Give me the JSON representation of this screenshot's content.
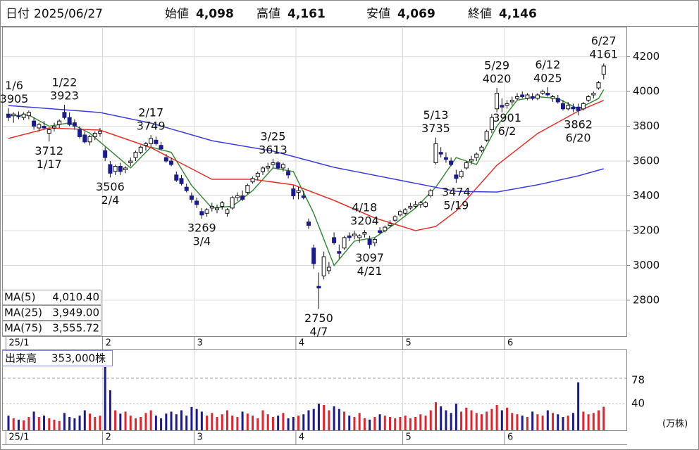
{
  "header": {
    "date_label": "日付",
    "date": "2025/06/27",
    "fields": [
      {
        "label": "始値",
        "value": "4,098",
        "color": "#111111"
      },
      {
        "label": "高値",
        "value": "4,161",
        "color": "#e8212b"
      },
      {
        "label": "安値",
        "value": "4,069",
        "color": "#1a7a1a"
      },
      {
        "label": "終値",
        "value": "4,146",
        "color": "#111111"
      }
    ]
  },
  "chart_data": {
    "type": "candlestick",
    "up_color": "#ffffff",
    "down_color": "#1b1b8f",
    "edge_color": "#111111",
    "ylim": [
      2594,
      4372
    ],
    "yticks": [
      2800,
      3000,
      3200,
      3400,
      3600,
      3800,
      4000,
      4200
    ],
    "grid": true,
    "dates": [
      "1/6",
      "1/7",
      "1/8",
      "1/9",
      "1/10",
      "1/14",
      "1/15",
      "1/16",
      "1/17",
      "1/20",
      "1/21",
      "1/22",
      "1/23",
      "1/24",
      "1/27",
      "1/28",
      "1/29",
      "1/30",
      "1/31",
      "2/3",
      "2/4",
      "2/5",
      "2/6",
      "2/7",
      "2/10",
      "2/12",
      "2/13",
      "2/14",
      "2/17",
      "2/18",
      "2/19",
      "2/20",
      "2/21",
      "2/25",
      "2/26",
      "2/27",
      "2/28",
      "3/3",
      "3/4",
      "3/5",
      "3/6",
      "3/7",
      "3/10",
      "3/11",
      "3/12",
      "3/13",
      "3/14",
      "3/17",
      "3/18",
      "3/19",
      "3/21",
      "3/24",
      "3/25",
      "3/26",
      "3/27",
      "3/28",
      "3/31",
      "4/1",
      "4/2",
      "4/3",
      "4/4",
      "4/7",
      "4/8",
      "4/9",
      "4/10",
      "4/11",
      "4/14",
      "4/15",
      "4/16",
      "4/17",
      "4/18",
      "4/21",
      "4/22",
      "4/23",
      "4/24",
      "4/25",
      "4/28",
      "4/30",
      "5/1",
      "5/2",
      "5/7",
      "5/8",
      "5/9",
      "5/12",
      "5/13",
      "5/14",
      "5/15",
      "5/16",
      "5/19",
      "5/20",
      "5/21",
      "5/22",
      "5/23",
      "5/26",
      "5/27",
      "5/28",
      "5/29",
      "5/30",
      "6/2",
      "6/3",
      "6/4",
      "6/5",
      "6/6",
      "6/9",
      "6/10",
      "6/11",
      "6/12",
      "6/13",
      "6/16",
      "6/17",
      "6/18",
      "6/19",
      "6/20",
      "6/23",
      "6/24",
      "6/25",
      "6/26",
      "6/27"
    ],
    "candles": [
      [
        3870,
        3905,
        3830,
        3850
      ],
      [
        3860,
        3880,
        3820,
        3870
      ],
      [
        3860,
        3885,
        3840,
        3855
      ],
      [
        3850,
        3880,
        3835,
        3870
      ],
      [
        3860,
        3890,
        3840,
        3880
      ],
      [
        3830,
        3850,
        3780,
        3800
      ],
      [
        3790,
        3820,
        3770,
        3810
      ],
      [
        3800,
        3830,
        3780,
        3790
      ],
      [
        3760,
        3790,
        3712,
        3780
      ],
      [
        3790,
        3820,
        3770,
        3800
      ],
      [
        3810,
        3840,
        3790,
        3830
      ],
      [
        3880,
        3923,
        3840,
        3850
      ],
      [
        3850,
        3880,
        3800,
        3810
      ],
      [
        3820,
        3840,
        3780,
        3800
      ],
      [
        3780,
        3800,
        3730,
        3740
      ],
      [
        3750,
        3770,
        3700,
        3710
      ],
      [
        3710,
        3750,
        3690,
        3740
      ],
      [
        3740,
        3770,
        3720,
        3760
      ],
      [
        3760,
        3790,
        3740,
        3770
      ],
      [
        3660,
        3680,
        3600,
        3620
      ],
      [
        3580,
        3600,
        3506,
        3530
      ],
      [
        3540,
        3580,
        3520,
        3570
      ],
      [
        3570,
        3590,
        3520,
        3540
      ],
      [
        3550,
        3570,
        3530,
        3560
      ],
      [
        3590,
        3620,
        3570,
        3600
      ],
      [
        3620,
        3660,
        3600,
        3650
      ],
      [
        3650,
        3690,
        3640,
        3680
      ],
      [
        3690,
        3710,
        3660,
        3700
      ],
      [
        3700,
        3749,
        3680,
        3730
      ],
      [
        3720,
        3740,
        3690,
        3700
      ],
      [
        3690,
        3710,
        3660,
        3670
      ],
      [
        3620,
        3640,
        3590,
        3600
      ],
      [
        3600,
        3620,
        3570,
        3580
      ],
      [
        3520,
        3540,
        3480,
        3490
      ],
      [
        3500,
        3520,
        3460,
        3470
      ],
      [
        3450,
        3470,
        3420,
        3430
      ],
      [
        3400,
        3420,
        3360,
        3380
      ],
      [
        3370,
        3390,
        3330,
        3350
      ],
      [
        3310,
        3330,
        3269,
        3290
      ],
      [
        3300,
        3330,
        3280,
        3320
      ],
      [
        3330,
        3360,
        3310,
        3340
      ],
      [
        3320,
        3350,
        3300,
        3330
      ],
      [
        3340,
        3370,
        3320,
        3360
      ],
      [
        3300,
        3330,
        3280,
        3320
      ],
      [
        3330,
        3400,
        3320,
        3390
      ],
      [
        3390,
        3420,
        3370,
        3400
      ],
      [
        3400,
        3430,
        3370,
        3380
      ],
      [
        3420,
        3470,
        3410,
        3460
      ],
      [
        3480,
        3510,
        3470,
        3500
      ],
      [
        3510,
        3540,
        3490,
        3530
      ],
      [
        3540,
        3570,
        3520,
        3560
      ],
      [
        3560,
        3590,
        3540,
        3570
      ],
      [
        3580,
        3613,
        3560,
        3590
      ],
      [
        3590,
        3600,
        3550,
        3560
      ],
      [
        3560,
        3590,
        3540,
        3580
      ],
      [
        3540,
        3560,
        3500,
        3520
      ],
      [
        3440,
        3460,
        3380,
        3400
      ],
      [
        3420,
        3450,
        3380,
        3430
      ],
      [
        3400,
        3430,
        3380,
        3390
      ],
      [
        3250,
        3270,
        3210,
        3230
      ],
      [
        3100,
        3120,
        2980,
        3010
      ],
      [
        2880,
        2960,
        2750,
        2870
      ],
      [
        2940,
        3080,
        2920,
        3050
      ],
      [
        2970,
        3020,
        2950,
        2990
      ],
      [
        3160,
        3190,
        3120,
        3130
      ],
      [
        3080,
        3120,
        3040,
        3070
      ],
      [
        3100,
        3170,
        3090,
        3160
      ],
      [
        3170,
        3190,
        3140,
        3160
      ],
      [
        3170,
        3200,
        3150,
        3180
      ],
      [
        3160,
        3180,
        3130,
        3170
      ],
      [
        3180,
        3204,
        3160,
        3190
      ],
      [
        3150,
        3170,
        3097,
        3120
      ],
      [
        3130,
        3160,
        3110,
        3150
      ],
      [
        3200,
        3220,
        3180,
        3190
      ],
      [
        3200,
        3230,
        3190,
        3220
      ],
      [
        3230,
        3260,
        3220,
        3240
      ],
      [
        3260,
        3290,
        3250,
        3280
      ],
      [
        3290,
        3320,
        3280,
        3310
      ],
      [
        3300,
        3330,
        3290,
        3320
      ],
      [
        3330,
        3360,
        3320,
        3340
      ],
      [
        3340,
        3370,
        3330,
        3350
      ],
      [
        3350,
        3370,
        3330,
        3360
      ],
      [
        3340,
        3370,
        3330,
        3360
      ],
      [
        3400,
        3440,
        3390,
        3430
      ],
      [
        3590,
        3735,
        3580,
        3700
      ],
      [
        3650,
        3680,
        3620,
        3640
      ],
      [
        3620,
        3650,
        3590,
        3610
      ],
      [
        3600,
        3620,
        3570,
        3580
      ],
      [
        3520,
        3550,
        3474,
        3500
      ],
      [
        3510,
        3550,
        3500,
        3540
      ],
      [
        3560,
        3600,
        3550,
        3590
      ],
      [
        3600,
        3630,
        3580,
        3610
      ],
      [
        3620,
        3650,
        3600,
        3640
      ],
      [
        3660,
        3690,
        3650,
        3680
      ],
      [
        3720,
        3780,
        3710,
        3770
      ],
      [
        3780,
        3870,
        3760,
        3850
      ],
      [
        3900,
        4020,
        3880,
        3990
      ],
      [
        3920,
        3960,
        3880,
        3910
      ],
      [
        3920,
        3950,
        3901,
        3930
      ],
      [
        3940,
        3970,
        3920,
        3950
      ],
      [
        3960,
        3990,
        3950,
        3970
      ],
      [
        3980,
        4000,
        3960,
        3970
      ],
      [
        3960,
        3990,
        3950,
        3980
      ],
      [
        3970,
        3990,
        3950,
        3960
      ],
      [
        3960,
        3990,
        3950,
        3980
      ],
      [
        3990,
        4010,
        3980,
        4000
      ],
      [
        3990,
        4025,
        3970,
        3980
      ],
      [
        3960,
        3980,
        3940,
        3970
      ],
      [
        3960,
        3980,
        3930,
        3940
      ],
      [
        3930,
        3950,
        3890,
        3900
      ],
      [
        3900,
        3940,
        3890,
        3920
      ],
      [
        3910,
        3930,
        3880,
        3900
      ],
      [
        3910,
        3930,
        3862,
        3890
      ],
      [
        3900,
        3940,
        3890,
        3930
      ],
      [
        3950,
        3980,
        3940,
        3970
      ],
      [
        3980,
        4000,
        3960,
        3990
      ],
      [
        4020,
        4060,
        4010,
        4050
      ],
      [
        4098,
        4161,
        4069,
        4146
      ]
    ],
    "ma_lines": [
      {
        "name": "MA(5)",
        "color": "#3a8a3a",
        "last_value": "4,010.40",
        "x": [
          "1/6",
          "1/10",
          "1/17",
          "1/23",
          "1/29",
          "2/4",
          "2/10",
          "2/17",
          "2/21",
          "2/28",
          "3/6",
          "3/12",
          "3/18",
          "3/25",
          "3/31",
          "4/4",
          "4/10",
          "4/16",
          "4/22",
          "4/28",
          "5/7",
          "5/13",
          "5/19",
          "5/23",
          "5/29",
          "6/4",
          "6/10",
          "6/16",
          "6/20",
          "6/26",
          "6/27"
        ],
        "values": [
          3860,
          3865,
          3800,
          3820,
          3760,
          3660,
          3560,
          3680,
          3650,
          3460,
          3330,
          3340,
          3430,
          3560,
          3540,
          3300,
          3000,
          3140,
          3160,
          3240,
          3330,
          3450,
          3620,
          3580,
          3800,
          3950,
          3970,
          3960,
          3900,
          3960,
          4010.4
        ]
      },
      {
        "name": "MA(25)",
        "color": "#e8302a",
        "last_value": "3,949.00",
        "x": [
          "1/6",
          "1/17",
          "1/31",
          "2/17",
          "3/6",
          "3/18",
          "3/31",
          "4/10",
          "4/22",
          "5/7",
          "5/13",
          "5/19",
          "5/29",
          "6/10",
          "6/20",
          "6/27"
        ],
        "values": [
          3730,
          3790,
          3778,
          3677,
          3495,
          3495,
          3463,
          3374,
          3273,
          3200,
          3224,
          3313,
          3576,
          3758,
          3887,
          3949
        ]
      },
      {
        "name": "MA(75)",
        "color": "#3d3de0",
        "last_value": "3,555.72",
        "x": [
          "1/6",
          "1/31",
          "2/17",
          "3/6",
          "3/25",
          "4/10",
          "4/28",
          "5/19",
          "5/29",
          "6/10",
          "6/20",
          "6/27"
        ],
        "values": [
          3919,
          3879,
          3818,
          3717,
          3657,
          3564,
          3495,
          3426,
          3422,
          3463,
          3515,
          3555.72
        ]
      }
    ],
    "annotations": [
      {
        "date": "1/6",
        "price": 3905,
        "place": "above"
      },
      {
        "date": "1/22",
        "price": 3923,
        "place": "above"
      },
      {
        "date": "1/17",
        "price": 3712,
        "place": "below"
      },
      {
        "date": "2/17",
        "price": 3749,
        "place": "above"
      },
      {
        "date": "2/4",
        "price": 3506,
        "place": "below"
      },
      {
        "date": "3/25",
        "price": 3613,
        "place": "above"
      },
      {
        "date": "3/4",
        "price": 3269,
        "place": "below"
      },
      {
        "date": "4/7",
        "price": 2750,
        "place": "below"
      },
      {
        "date": "4/18",
        "price": 3204,
        "place": "above"
      },
      {
        "date": "4/21",
        "price": 3097,
        "place": "below"
      },
      {
        "date": "5/13",
        "price": 3735,
        "place": "above"
      },
      {
        "date": "5/19",
        "price": 3474,
        "place": "below"
      },
      {
        "date": "5/29",
        "price": 4020,
        "place": "above"
      },
      {
        "date": "6/2",
        "price": 3901,
        "place": "below"
      },
      {
        "date": "6/12",
        "price": 4025,
        "place": "above"
      },
      {
        "date": "6/20",
        "price": 3862,
        "place": "below"
      },
      {
        "date": "6/27",
        "price": 4161,
        "place": "above"
      }
    ],
    "month_ticks": [
      {
        "date": "1/6",
        "label": "25/1"
      },
      {
        "date": "2/3",
        "label": "2"
      },
      {
        "date": "3/3",
        "label": "3"
      },
      {
        "date": "4/1",
        "label": "4"
      },
      {
        "date": "5/1",
        "label": "5"
      },
      {
        "date": "6/2",
        "label": "6"
      }
    ],
    "volume": {
      "title": "出来高",
      "latest": "353,000株",
      "unit": "(万株)",
      "up_color": "#e8212b",
      "down_color": "#1b1b8f",
      "ylim": [
        0,
        97
      ],
      "yticks": [
        40
      ],
      "ref": {
        "value": 78,
        "color": "#e04a1a"
      },
      "values": [
        22,
        18,
        16,
        15,
        20,
        28,
        20,
        22,
        18,
        16,
        14,
        26,
        20,
        18,
        22,
        30,
        25,
        20,
        22,
        95,
        60,
        30,
        25,
        28,
        22,
        18,
        20,
        26,
        30,
        22,
        18,
        25,
        28,
        24,
        30,
        22,
        35,
        32,
        28,
        22,
        26,
        20,
        24,
        30,
        22,
        20,
        28,
        25,
        22,
        18,
        30,
        24,
        20,
        22,
        26,
        18,
        20,
        22,
        24,
        30,
        32,
        40,
        38,
        30,
        36,
        32,
        28,
        22,
        20,
        26,
        18,
        16,
        20,
        24,
        22,
        20,
        18,
        20,
        22,
        18,
        20,
        24,
        22,
        30,
        42,
        36,
        30,
        26,
        40,
        28,
        34,
        30,
        26,
        24,
        28,
        32,
        38,
        30,
        34,
        26,
        24,
        22,
        20,
        28,
        24,
        22,
        30,
        26,
        24,
        20,
        22,
        26,
        72,
        28,
        24,
        26,
        30,
        35.3
      ]
    }
  }
}
